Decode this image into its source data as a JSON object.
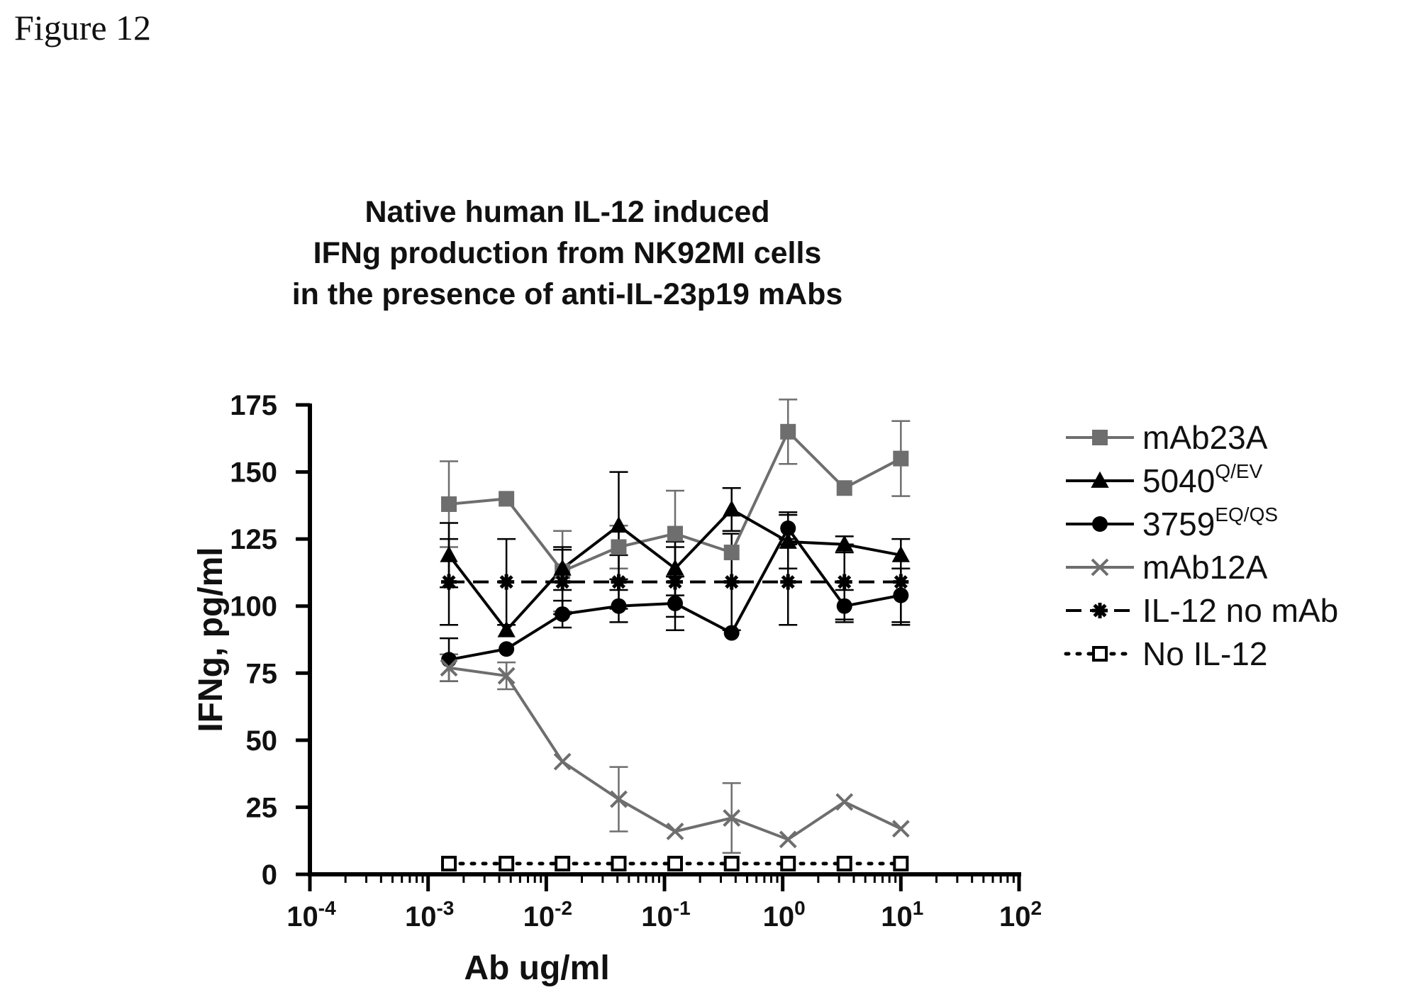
{
  "figure_label": "Figure 12",
  "chart_data": {
    "type": "line",
    "title": [
      "Native human IL-12 induced",
      "IFNg production from  NK92MI cells",
      "in the presence of anti-IL-23p19 mAbs"
    ],
    "xlabel": "Ab ug/ml",
    "ylabel": "IFNg, pg/ml",
    "x_scale": "log",
    "xlim": [
      0.0001,
      100
    ],
    "ylim": [
      0,
      175
    ],
    "x_ticks": [
      {
        "base": "10",
        "exp": "-4",
        "value": 0.0001
      },
      {
        "base": "10",
        "exp": "-3",
        "value": 0.001
      },
      {
        "base": "10",
        "exp": "-2",
        "value": 0.01
      },
      {
        "base": "10",
        "exp": "-1",
        "value": 0.1
      },
      {
        "base": "10",
        "exp": "0",
        "value": 1
      },
      {
        "base": "10",
        "exp": "1",
        "value": 10
      },
      {
        "base": "10",
        "exp": "2",
        "value": 100
      }
    ],
    "y_ticks": [
      "0",
      "25",
      "50",
      "75",
      "100",
      "125",
      "150",
      "175"
    ],
    "x": [
      0.0015,
      0.0046,
      0.0137,
      0.041,
      0.123,
      0.37,
      1.11,
      3.33,
      10
    ],
    "legend_placement": "right",
    "grid": false,
    "series": [
      {
        "name": "mAb23A",
        "name_sup": "",
        "color": "#6e6e6e",
        "marker": "square-filled",
        "dash": "solid",
        "values": [
          138,
          140,
          113,
          122,
          127,
          120,
          165,
          144,
          155
        ],
        "errors": [
          16,
          0,
          15,
          8,
          16,
          0,
          12,
          0,
          14
        ]
      },
      {
        "name": "5040",
        "name_sup": "Q/EV",
        "color": "#000000",
        "marker": "triangle-filled",
        "dash": "solid",
        "values": [
          119,
          91,
          114,
          130,
          114,
          136,
          124,
          123,
          119
        ],
        "errors": [
          12,
          0,
          8,
          20,
          10,
          8,
          10,
          3,
          0
        ]
      },
      {
        "name": "3759",
        "name_sup": "EQ/QS",
        "color": "#000000",
        "marker": "circle-filled",
        "dash": "solid",
        "values": [
          80,
          84,
          97,
          100,
          101,
          90,
          129,
          100,
          104
        ],
        "errors": [
          8,
          0,
          5,
          6,
          10,
          0,
          6,
          6,
          10
        ]
      },
      {
        "name": "mAb12A",
        "name_sup": "",
        "color": "#6e6e6e",
        "marker": "x",
        "dash": "solid",
        "values": [
          77,
          74,
          42,
          28,
          16,
          21,
          13,
          27,
          17
        ],
        "errors": [
          5,
          5,
          0,
          12,
          0,
          13,
          0,
          0,
          0
        ]
      },
      {
        "name": "IL-12 no mAb",
        "name_sup": "",
        "color": "#000000",
        "marker": "asterisk",
        "dash": "dashed",
        "values": [
          109,
          109,
          109,
          109,
          109,
          109,
          109,
          109,
          109
        ],
        "errors": [
          16,
          16,
          12,
          10,
          13,
          18,
          16,
          14,
          16
        ]
      },
      {
        "name": "No IL-12",
        "name_sup": "",
        "color": "#000000",
        "marker": "square-open",
        "dash": "dotted",
        "values": [
          4,
          4,
          4,
          4,
          4,
          4,
          4,
          4,
          4
        ],
        "errors": [
          0,
          0,
          0,
          0,
          0,
          0,
          0,
          0,
          0
        ]
      }
    ]
  }
}
